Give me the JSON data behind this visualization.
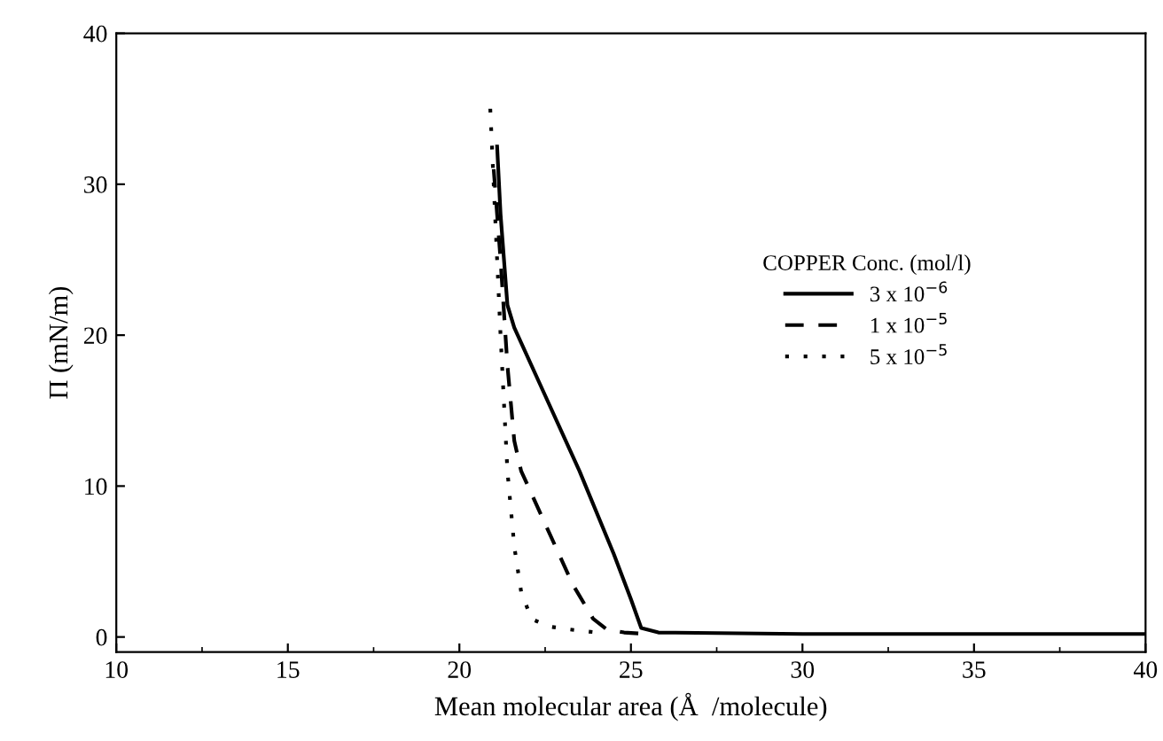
{
  "chart_data": {
    "type": "line",
    "xlabel": "Mean molecular area (Å  /molecule)",
    "ylabel": "Π (mN/m)",
    "legend_title": "COPPER Conc. (mol/l)",
    "xlim": [
      10,
      40
    ],
    "ylim": [
      -1,
      40
    ],
    "xticks": [
      10,
      15,
      20,
      25,
      30,
      35,
      40
    ],
    "yticks": [
      0,
      10,
      20,
      30,
      40
    ],
    "grid": false,
    "legend": "right",
    "series": [
      {
        "name": "3 x 10$^{−6}$",
        "color": "#000000",
        "line_style": "solid",
        "x": [
          21.1,
          21.2,
          21.4,
          21.6,
          22.5,
          23.5,
          24.5,
          25.0,
          25.3,
          25.8,
          30,
          40
        ],
        "values": [
          32.5,
          28,
          22,
          20.5,
          16,
          11,
          5.5,
          2.5,
          0.6,
          0.3,
          0.2,
          0.2
        ]
      },
      {
        "name": "1 x 10$^{−5}$",
        "color": "#000000",
        "line_style": "dashed",
        "x": [
          21.0,
          21.2,
          21.4,
          21.6,
          21.8,
          22.5,
          23.3,
          23.9,
          24.3,
          24.8,
          25.5
        ],
        "values": [
          31,
          25,
          18,
          13,
          11,
          7.5,
          3.5,
          1.2,
          0.5,
          0.3,
          0.2
        ]
      },
      {
        "name": "5 x 10$^{−5}$",
        "color": "#000000",
        "line_style": "dotted",
        "x": [
          20.9,
          21.0,
          21.2,
          21.4,
          21.6,
          21.8,
          22.1,
          22.6,
          23.2,
          24.0
        ],
        "values": [
          35,
          30,
          20,
          11,
          6,
          3,
          1.2,
          0.7,
          0.5,
          0.3
        ]
      }
    ]
  }
}
